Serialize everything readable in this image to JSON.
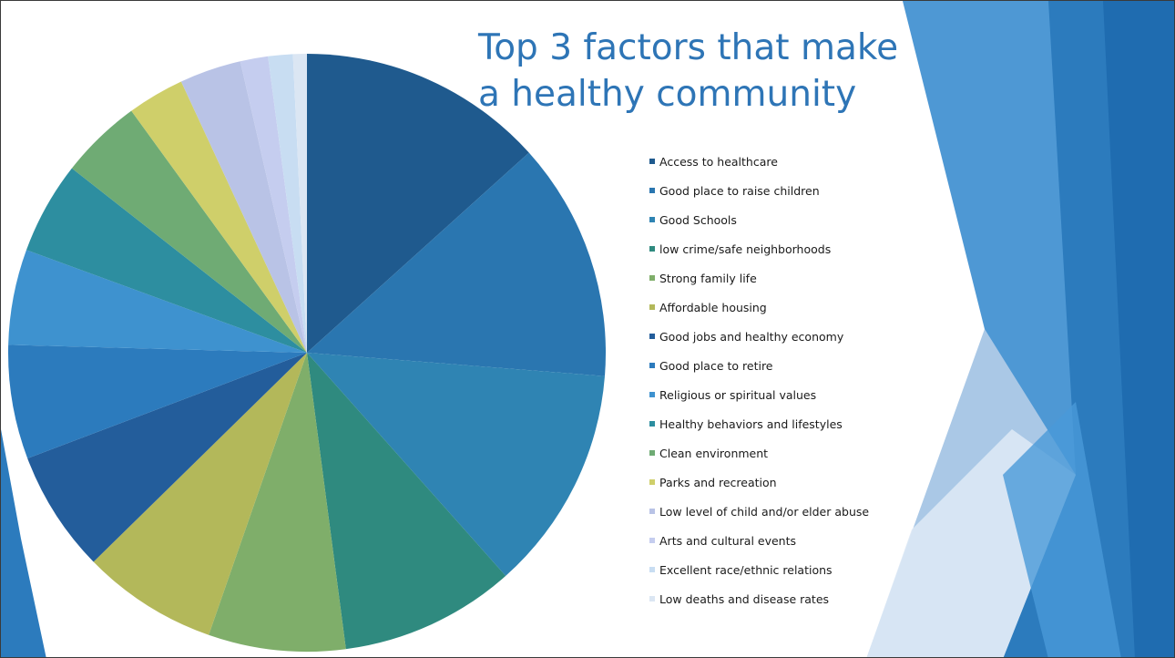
{
  "slide": {
    "title_line1": "Top 3 factors that make",
    "title_line2": "a healthy community",
    "title_color": "#2e75b6"
  },
  "chart_data": {
    "type": "pie",
    "title": "Top 3 factors that make a healthy community",
    "legend_position": "right",
    "series": [
      {
        "values": [
          16.0,
          15.5,
          14.6,
          11.4,
          8.9,
          8.8,
          7.9,
          7.4,
          6.2,
          6.0,
          5.3,
          3.7,
          4.0,
          1.8,
          1.6,
          0.9
        ],
        "labels": [
          "Access to healthcare",
          "Good place to raise children",
          "Good Schools",
          "low crime/safe neighborhoods",
          "Strong family life",
          "Affordable housing",
          "Good jobs and healthy economy",
          "Good place to retire",
          "Religious or spiritual values",
          "Healthy behaviors and lifestyles",
          "Clean environment",
          "Parks and recreation",
          "Low level of child and/or elder abuse",
          "Arts and cultural events",
          "Excellent race/ethnic relations",
          "Low deaths and disease rates"
        ],
        "colors": [
          "#1f5a8e",
          "#2a76b0",
          "#2f84b3",
          "#2f8a7f",
          "#7fae6a",
          "#b3b85a",
          "#235d9b",
          "#2c7bbd",
          "#3e92cf",
          "#2d8ea0",
          "#6fab74",
          "#cfcf6a",
          "#b9c3e6",
          "#c5cdef",
          "#c8ddf2",
          "#dbe6f3"
        ]
      }
    ]
  }
}
